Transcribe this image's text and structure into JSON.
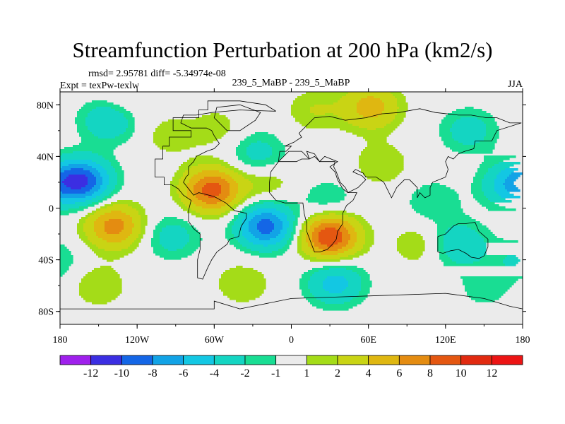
{
  "chart_data": {
    "type": "heatmap",
    "title": "Streamfunction Perturbation at 200 hPa (km2/s)",
    "stats_text": "rmsd= 2.95781 diff= -5.34974e-08",
    "left_label": "Expt = texPw-texlw",
    "center_label": "239_5_MaBP - 239_5_MaBP",
    "right_label": "JJA",
    "x_range": [
      -180,
      180
    ],
    "y_range": [
      -90,
      90
    ],
    "x_ticks": [
      {
        "value": -180,
        "label": "180"
      },
      {
        "value": -120,
        "label": "120W"
      },
      {
        "value": -60,
        "label": "60W"
      },
      {
        "value": 0,
        "label": "0"
      },
      {
        "value": 60,
        "label": "60E"
      },
      {
        "value": 120,
        "label": "120E"
      },
      {
        "value": 180,
        "label": "180"
      }
    ],
    "y_ticks": [
      {
        "value": 80,
        "label": "80N"
      },
      {
        "value": 40,
        "label": "40N"
      },
      {
        "value": 0,
        "label": "0"
      },
      {
        "value": -40,
        "label": "40S"
      },
      {
        "value": -80,
        "label": "80S"
      }
    ],
    "colorbar": {
      "labels": [
        "-12",
        "-10",
        "-8",
        "-6",
        "-4",
        "-2",
        "-1",
        "1",
        "2",
        "4",
        "6",
        "8",
        "10",
        "12"
      ],
      "colors": [
        "#9f20ec",
        "#3b2ee2",
        "#1466e6",
        "#12a3e6",
        "#13c7e3",
        "#14d5c2",
        "#19dd93",
        "#ebebeb",
        "#a4dc18",
        "#c9d414",
        "#dfb711",
        "#e48c11",
        "#e45711",
        "#e12a10",
        "#ec1414"
      ]
    },
    "features": [
      {
        "lon": -163,
        "lat": 21,
        "value": -10
      },
      {
        "lon": -142,
        "lat": 68,
        "value": -4
      },
      {
        "lon": -138,
        "lat": -14,
        "value": 7
      },
      {
        "lon": -150,
        "lat": -60,
        "value": 2
      },
      {
        "lon": -128,
        "lat": 85,
        "value": 1.5
      },
      {
        "lon": -96,
        "lat": 56,
        "value": 1.5
      },
      {
        "lon": -93,
        "lat": -22,
        "value": -3
      },
      {
        "lon": -62,
        "lat": 14,
        "value": 9
      },
      {
        "lon": -20,
        "lat": 20,
        "value": 2
      },
      {
        "lon": -20,
        "lat": -14,
        "value": -9
      },
      {
        "lon": -38,
        "lat": -58,
        "value": 2
      },
      {
        "lon": -26,
        "lat": 42,
        "value": -3
      },
      {
        "lon": -58,
        "lat": 62,
        "value": 1.5
      },
      {
        "lon": 30,
        "lat": -22,
        "value": 10
      },
      {
        "lon": 34,
        "lat": -58,
        "value": -5
      },
      {
        "lon": 62,
        "lat": 78,
        "value": 5
      },
      {
        "lon": 18,
        "lat": 76,
        "value": 2
      },
      {
        "lon": 70,
        "lat": 34,
        "value": 2
      },
      {
        "lon": 28,
        "lat": 6,
        "value": -2
      },
      {
        "lon": 110,
        "lat": 5,
        "value": -2
      },
      {
        "lon": 100,
        "lat": -28,
        "value": 2
      },
      {
        "lon": 130,
        "lat": -28,
        "value": -4
      },
      {
        "lon": 138,
        "lat": 60,
        "value": -3
      },
      {
        "lon": 170,
        "lat": 18,
        "value": -5
      },
      {
        "lon": 175,
        "lat": -40,
        "value": -2
      },
      {
        "lon": 150,
        "lat": -62,
        "value": -1.5
      }
    ]
  }
}
